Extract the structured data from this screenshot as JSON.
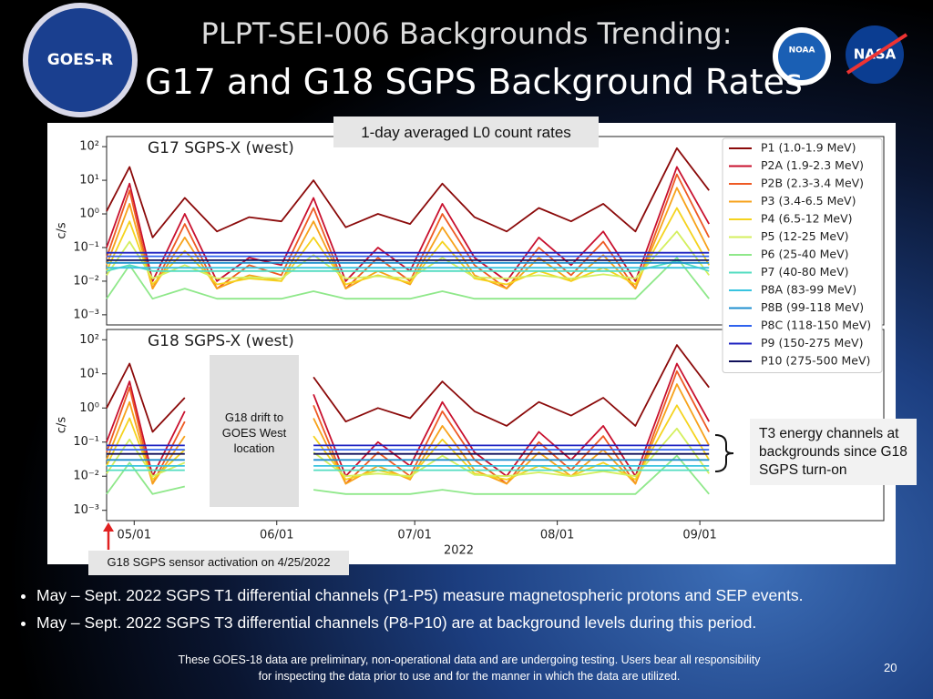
{
  "slide": {
    "title_line1": "PLPT-SEI-006 Backgrounds Trending:",
    "title_line2": "G17 and G18 SGPS Background Rates",
    "logos": [
      "GOES-R",
      "NOAA",
      "NASA"
    ],
    "banner": "1-day averaged L0 count rates",
    "bullets": [
      "May – Sept. 2022 SGPS T1 differential channels (P1-P5) measure magnetospheric protons and SEP events.",
      "May – Sept. 2022 SGPS T3 differential channels (P8-P10) are at background levels during this period."
    ],
    "footer": "These GOES-18 data are preliminary, non-operational data and are undergoing testing. Users bear all responsibility for inspecting the data prior to use and for the manner in which the data are utilized.",
    "page_number": "20"
  },
  "chart_data": [
    {
      "type": "line",
      "title": "G17 SGPS-X (west)",
      "y_label": "c/s",
      "yscale": "log",
      "legend": "upper right",
      "ylim": [
        0.0005,
        200
      ],
      "yticks": [
        {
          "value": 100,
          "label": "10²"
        },
        {
          "value": 10,
          "label": "10¹"
        },
        {
          "value": 1,
          "label": "10⁰"
        },
        {
          "value": 0.1,
          "label": "10⁻¹"
        },
        {
          "value": 0.01,
          "label": "10⁻²"
        },
        {
          "value": 0.001,
          "label": "10⁻³"
        }
      ],
      "xlim": [
        "2022-04-25",
        "2022-10-11"
      ],
      "x": [
        "2022-04-25",
        "2022-04-30",
        "2022-05-05",
        "2022-05-12",
        "2022-05-19",
        "2022-05-26",
        "2022-06-02",
        "2022-06-09",
        "2022-06-16",
        "2022-06-23",
        "2022-06-30",
        "2022-07-07",
        "2022-07-14",
        "2022-07-21",
        "2022-07-28",
        "2022-08-04",
        "2022-08-11",
        "2022-08-18",
        "2022-08-27",
        "2022-09-03"
      ],
      "series": [
        {
          "name": "P1 (1.0-1.9 MeV)",
          "color": "#8b0a0a",
          "values": [
            1.2,
            25,
            0.2,
            3,
            0.3,
            0.8,
            0.6,
            10,
            0.4,
            1,
            0.5,
            8,
            0.8,
            0.3,
            1.5,
            0.6,
            2,
            0.3,
            90,
            5
          ]
        },
        {
          "name": "P2A (1.9-2.3 MeV)",
          "color": "#c8102e",
          "values": [
            0.1,
            8,
            0.01,
            1,
            0.01,
            0.05,
            0.03,
            3,
            0.01,
            0.1,
            0.02,
            2,
            0.05,
            0.01,
            0.2,
            0.03,
            0.3,
            0.01,
            25,
            0.5
          ]
        },
        {
          "name": "P2B (2.3-3.4 MeV)",
          "color": "#ee5a24",
          "values": [
            0.05,
            5,
            0.006,
            0.5,
            0.006,
            0.03,
            0.015,
            1.5,
            0.006,
            0.05,
            0.01,
            1,
            0.03,
            0.006,
            0.1,
            0.015,
            0.15,
            0.006,
            15,
            0.2
          ]
        },
        {
          "name": "P3 (3.4-6.5 MeV)",
          "color": "#f7a21b",
          "values": [
            0.03,
            2,
            0.006,
            0.2,
            0.006,
            0.015,
            0.01,
            0.6,
            0.006,
            0.02,
            0.008,
            0.4,
            0.015,
            0.006,
            0.05,
            0.01,
            0.06,
            0.006,
            6,
            0.08
          ]
        },
        {
          "name": "P4 (6.5-12 MeV)",
          "color": "#f5d31e",
          "values": [
            0.02,
            0.6,
            0.008,
            0.08,
            0.008,
            0.012,
            0.01,
            0.2,
            0.008,
            0.015,
            0.009,
            0.15,
            0.012,
            0.008,
            0.02,
            0.01,
            0.025,
            0.008,
            1.5,
            0.03
          ]
        },
        {
          "name": "P5 (12-25 MeV)",
          "color": "#d4ef5e",
          "values": [
            0.015,
            0.15,
            0.012,
            0.03,
            0.012,
            0.013,
            0.012,
            0.06,
            0.012,
            0.014,
            0.012,
            0.05,
            0.013,
            0.012,
            0.015,
            0.012,
            0.016,
            0.012,
            0.3,
            0.015
          ]
        },
        {
          "name": "P6 (25-40 MeV)",
          "color": "#8fe88a",
          "values": [
            0.003,
            0.03,
            0.003,
            0.006,
            0.003,
            0.003,
            0.003,
            0.005,
            0.003,
            0.003,
            0.003,
            0.005,
            0.003,
            0.003,
            0.003,
            0.003,
            0.003,
            0.003,
            0.05,
            0.003
          ]
        },
        {
          "name": "P7 (40-80 MeV)",
          "color": "#52dcc0",
          "values": [
            0.02,
            0.03,
            0.02,
            0.02,
            0.02,
            0.02,
            0.02,
            0.02,
            0.02,
            0.02,
            0.02,
            0.02,
            0.02,
            0.02,
            0.02,
            0.02,
            0.02,
            0.02,
            0.04,
            0.02
          ]
        },
        {
          "name": "P8A (83-99 MeV)",
          "color": "#38c4e0",
          "values": [
            0.025,
            0.025,
            0.025,
            0.025,
            0.025,
            0.025,
            0.025,
            0.025,
            0.025,
            0.025,
            0.025,
            0.025,
            0.025,
            0.025,
            0.025,
            0.025,
            0.025,
            0.025,
            0.025,
            0.025
          ]
        },
        {
          "name": "P8B (99-118 MeV)",
          "color": "#1f8fcf",
          "values": [
            0.035,
            0.035,
            0.035,
            0.035,
            0.035,
            0.035,
            0.035,
            0.035,
            0.035,
            0.035,
            0.035,
            0.035,
            0.035,
            0.035,
            0.035,
            0.035,
            0.035,
            0.035,
            0.035,
            0.035
          ]
        },
        {
          "name": "P8C (118-150 MeV)",
          "color": "#2f62ee",
          "values": [
            0.055,
            0.055,
            0.055,
            0.055,
            0.055,
            0.055,
            0.055,
            0.055,
            0.055,
            0.055,
            0.055,
            0.055,
            0.055,
            0.055,
            0.055,
            0.055,
            0.055,
            0.055,
            0.055,
            0.055
          ]
        },
        {
          "name": "P9 (150-275 MeV)",
          "color": "#1e22c0",
          "values": [
            0.07,
            0.07,
            0.07,
            0.07,
            0.07,
            0.07,
            0.07,
            0.07,
            0.07,
            0.07,
            0.07,
            0.07,
            0.07,
            0.07,
            0.07,
            0.07,
            0.07,
            0.07,
            0.07,
            0.07
          ]
        },
        {
          "name": "P10 (275-500 MeV)",
          "color": "#0f0f5a",
          "values": [
            0.042,
            0.042,
            0.042,
            0.042,
            0.042,
            0.042,
            0.042,
            0.042,
            0.042,
            0.042,
            0.042,
            0.042,
            0.042,
            0.042,
            0.042,
            0.042,
            0.042,
            0.042,
            0.042,
            0.042
          ]
        }
      ]
    },
    {
      "type": "line",
      "title": "G18 SGPS-X (west)",
      "y_label": "c/s",
      "x_label": "2022",
      "yscale": "log",
      "ylim": [
        0.0005,
        200
      ],
      "yticks": [
        {
          "value": 100,
          "label": "10²"
        },
        {
          "value": 10,
          "label": "10¹"
        },
        {
          "value": 1,
          "label": "10⁰"
        },
        {
          "value": 0.1,
          "label": "10⁻¹"
        },
        {
          "value": 0.01,
          "label": "10⁻²"
        },
        {
          "value": 0.001,
          "label": "10⁻³"
        }
      ],
      "xlim": [
        "2022-04-25",
        "2022-10-11"
      ],
      "xticks": [
        {
          "value": "2022-05-01",
          "label": "05/01"
        },
        {
          "value": "2022-06-01",
          "label": "06/01"
        },
        {
          "value": "2022-07-01",
          "label": "07/01"
        },
        {
          "value": "2022-08-01",
          "label": "08/01"
        },
        {
          "value": "2022-09-01",
          "label": "09/01"
        }
      ],
      "annotations": [
        "G18 drift to GOES West location",
        "T3 energy channels at backgrounds since G18 SGPS turn-on",
        "G18 SGPS sensor activation on 4/25/2022"
      ],
      "x": [
        "2022-04-25",
        "2022-04-30",
        "2022-05-05",
        "2022-05-12",
        "2022-05-19",
        "2022-05-26",
        "2022-06-02",
        "2022-06-09",
        "2022-06-16",
        "2022-06-23",
        "2022-06-30",
        "2022-07-07",
        "2022-07-14",
        "2022-07-21",
        "2022-07-28",
        "2022-08-04",
        "2022-08-11",
        "2022-08-18",
        "2022-08-27",
        "2022-09-03"
      ],
      "series": [
        {
          "color": "#8b0a0a",
          "values": [
            1,
            20,
            0.2,
            2,
            null,
            null,
            null,
            8,
            0.4,
            1,
            0.5,
            6,
            0.8,
            0.3,
            1.5,
            0.6,
            2,
            0.3,
            70,
            4
          ]
        },
        {
          "color": "#c8102e",
          "values": [
            0.1,
            6,
            0.01,
            0.8,
            null,
            null,
            null,
            2.5,
            0.01,
            0.1,
            0.02,
            1.5,
            0.05,
            0.01,
            0.2,
            0.03,
            0.3,
            0.01,
            20,
            0.4
          ]
        },
        {
          "color": "#ee5a24",
          "values": [
            0.05,
            4,
            0.006,
            0.4,
            null,
            null,
            null,
            1.2,
            0.006,
            0.05,
            0.01,
            0.8,
            0.03,
            0.006,
            0.1,
            0.015,
            0.15,
            0.006,
            12,
            0.2
          ]
        },
        {
          "color": "#f7a21b",
          "values": [
            0.03,
            1.5,
            0.006,
            0.15,
            null,
            null,
            null,
            0.5,
            0.006,
            0.02,
            0.008,
            0.3,
            0.015,
            0.006,
            0.05,
            0.01,
            0.06,
            0.006,
            5,
            0.08
          ]
        },
        {
          "color": "#f5d31e",
          "values": [
            0.02,
            0.5,
            0.008,
            0.06,
            null,
            null,
            null,
            0.15,
            0.008,
            0.015,
            0.009,
            0.12,
            0.012,
            0.008,
            0.02,
            0.01,
            0.025,
            0.008,
            1.2,
            0.03
          ]
        },
        {
          "color": "#d4ef5e",
          "values": [
            0.012,
            0.12,
            0.01,
            0.025,
            null,
            null,
            null,
            0.05,
            0.01,
            0.012,
            0.01,
            0.04,
            0.011,
            0.01,
            0.013,
            0.01,
            0.014,
            0.01,
            0.25,
            0.012
          ]
        },
        {
          "color": "#8fe88a",
          "values": [
            0.003,
            0.025,
            0.003,
            0.005,
            null,
            null,
            null,
            0.004,
            0.003,
            0.003,
            0.003,
            0.004,
            0.003,
            0.003,
            0.003,
            0.003,
            0.003,
            0.003,
            0.04,
            0.003
          ]
        },
        {
          "color": "#52dcc0",
          "values": [
            0.015,
            0.015,
            0.015,
            0.015,
            null,
            null,
            null,
            0.015,
            0.015,
            0.015,
            0.015,
            0.015,
            0.015,
            0.015,
            0.015,
            0.015,
            0.015,
            0.015,
            0.015,
            0.015
          ]
        },
        {
          "color": "#38c4e0",
          "values": [
            0.02,
            0.02,
            0.02,
            0.02,
            null,
            null,
            null,
            0.02,
            0.02,
            0.02,
            0.02,
            0.02,
            0.02,
            0.02,
            0.02,
            0.02,
            0.02,
            0.02,
            0.02,
            0.02
          ]
        },
        {
          "color": "#1f8fcf",
          "values": [
            0.03,
            0.03,
            0.03,
            0.03,
            null,
            null,
            null,
            0.03,
            0.03,
            0.03,
            0.03,
            0.03,
            0.03,
            0.03,
            0.03,
            0.03,
            0.03,
            0.03,
            0.03,
            0.03
          ]
        },
        {
          "color": "#2f62ee",
          "values": [
            0.06,
            0.06,
            0.06,
            0.06,
            null,
            null,
            null,
            0.06,
            0.06,
            0.06,
            0.06,
            0.06,
            0.06,
            0.06,
            0.06,
            0.06,
            0.06,
            0.06,
            0.06,
            0.06
          ]
        },
        {
          "color": "#1e22c0",
          "values": [
            0.08,
            0.08,
            0.08,
            0.08,
            null,
            null,
            null,
            0.08,
            0.08,
            0.08,
            0.08,
            0.08,
            0.08,
            0.08,
            0.08,
            0.08,
            0.08,
            0.08,
            0.08,
            0.08
          ]
        },
        {
          "color": "#0f0f5a",
          "values": [
            0.045,
            0.045,
            0.045,
            0.045,
            null,
            null,
            null,
            0.045,
            0.045,
            0.045,
            0.045,
            0.045,
            0.045,
            0.045,
            0.045,
            0.045,
            0.045,
            0.045,
            0.045,
            0.045
          ]
        }
      ]
    }
  ]
}
